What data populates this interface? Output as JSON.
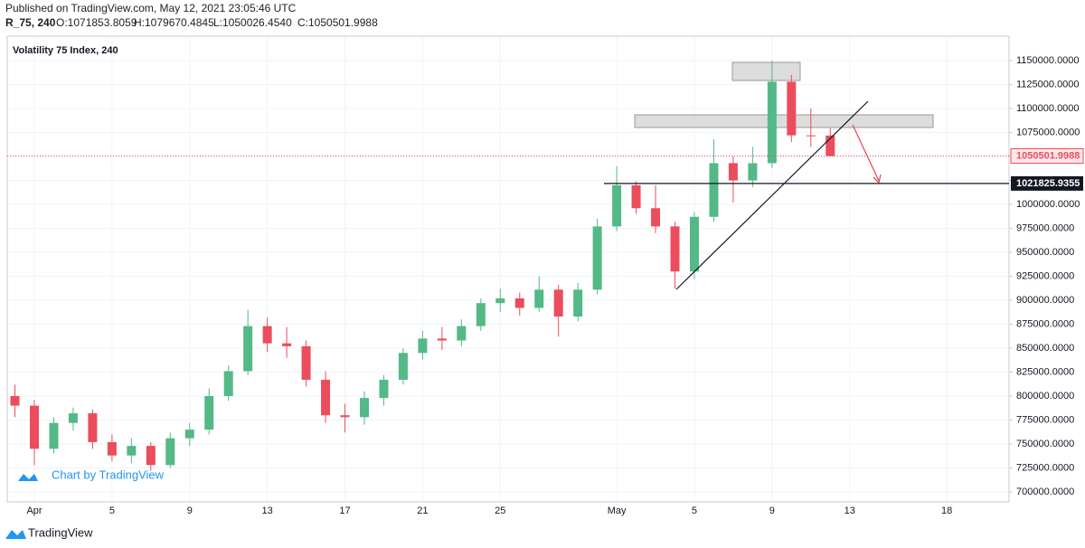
{
  "header": {
    "published": "Published on TradingView.com, May 12, 2021 23:05:46 UTC",
    "symbol": "R_75, 240",
    "ohlc": [
      "O:1071853.8059",
      "H:1079670.4845",
      "L:1050026.4540",
      "C:1050501.9988"
    ]
  },
  "footer": {
    "brand": "TradingView",
    "watermark": "Chart by TradingView"
  },
  "chart_data": {
    "type": "candlestick",
    "title": "Volatility 75 Index, 240",
    "categories": [
      null,
      "Apr",
      null,
      null,
      null,
      "5",
      null,
      null,
      null,
      "9",
      null,
      null,
      null,
      "13",
      null,
      null,
      null,
      "17",
      null,
      null,
      null,
      "21",
      null,
      null,
      null,
      "25",
      null,
      null,
      null,
      null,
      null,
      "May",
      null,
      null,
      null,
      "5",
      null,
      null,
      null,
      "9",
      null,
      null,
      null,
      "13",
      null,
      null,
      null,
      null,
      "18"
    ],
    "open": [
      800000,
      790000,
      745000,
      772000,
      782000,
      752000,
      738000,
      748000,
      728000,
      756000,
      765000,
      800000,
      826000,
      873000,
      855000,
      852000,
      817000,
      780000,
      778000,
      798000,
      817000,
      845000,
      860000,
      858000,
      873000,
      897000,
      902000,
      892000,
      911000,
      883000,
      911000,
      977000,
      1020000,
      996000,
      977000,
      930000,
      987000,
      1043000,
      1025000,
      1043000,
      1128000,
      1072000,
      1071853.8059,
      null,
      null,
      null,
      null,
      null,
      null
    ],
    "high": [
      812000,
      796000,
      778000,
      788000,
      786000,
      760000,
      756000,
      752000,
      762000,
      772000,
      808000,
      832000,
      890000,
      882000,
      872000,
      858000,
      826000,
      792000,
      805000,
      822000,
      850000,
      868000,
      872000,
      880000,
      902000,
      912000,
      908000,
      925000,
      916000,
      918000,
      985000,
      1040000,
      1024000,
      1020000,
      982000,
      992000,
      1068000,
      1050000,
      1060000,
      1150000,
      1135000,
      1100000,
      1079670.4845,
      null,
      null,
      null,
      null,
      null,
      null
    ],
    "low": [
      778000,
      728000,
      740000,
      764000,
      745000,
      732000,
      730000,
      722000,
      725000,
      748000,
      760000,
      795000,
      822000,
      846000,
      840000,
      810000,
      772000,
      762000,
      770000,
      790000,
      812000,
      838000,
      848000,
      852000,
      868000,
      888000,
      884000,
      888000,
      862000,
      878000,
      906000,
      972000,
      990000,
      970000,
      912000,
      922000,
      982000,
      1002000,
      1018000,
      1038000,
      1065000,
      1060000,
      1050026.454,
      null,
      null,
      null,
      null,
      null,
      null
    ],
    "close": [
      790000,
      745000,
      772000,
      782000,
      752000,
      738000,
      748000,
      728000,
      756000,
      765000,
      800000,
      826000,
      873000,
      855000,
      852000,
      817000,
      780000,
      778000,
      798000,
      817000,
      845000,
      860000,
      858000,
      873000,
      897000,
      902000,
      892000,
      911000,
      883000,
      911000,
      977000,
      1020000,
      996000,
      977000,
      930000,
      987000,
      1043000,
      1025000,
      1043000,
      1128000,
      1072000,
      1071853.8059,
      1050501.9988,
      null,
      null,
      null,
      null,
      null,
      null
    ],
    "up_color": "#53b987",
    "down_color": "#eb4d5c",
    "hline": 1021825.9355,
    "ylim": [
      689600,
      1175500
    ],
    "yticks": [
      {
        "value": 700000,
        "label": "700000.0000"
      },
      {
        "value": 725000,
        "label": "725000.0000"
      },
      {
        "value": 750000,
        "label": "750000.0000"
      },
      {
        "value": 775000,
        "label": "775000.0000"
      },
      {
        "value": 800000,
        "label": "800000.0000"
      },
      {
        "value": 825000,
        "label": "825000.0000"
      },
      {
        "value": 850000,
        "label": "850000.0000"
      },
      {
        "value": 875000,
        "label": "875000.0000"
      },
      {
        "value": 900000,
        "label": "900000.0000"
      },
      {
        "value": 925000,
        "label": "925000.0000"
      },
      {
        "value": 950000,
        "label": "950000.0000"
      },
      {
        "value": 975000,
        "label": "975000.0000"
      },
      {
        "value": 1000000,
        "label": "1000000.0000"
      },
      {
        "value": 1025000,
        "label": "1025000.0000"
      },
      {
        "value": 1050000,
        "label": "1050000.0000"
      },
      {
        "value": 1075000,
        "label": "1075000.0000"
      },
      {
        "value": 1100000,
        "label": "1100000.0000"
      },
      {
        "value": 1125000,
        "label": "1125000.0000"
      },
      {
        "value": 1150000,
        "label": "1150000.0000"
      }
    ],
    "grid": true
  }
}
